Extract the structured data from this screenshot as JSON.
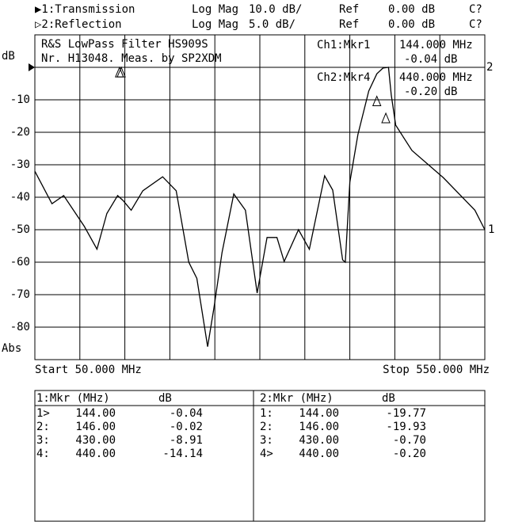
{
  "header": {
    "lines": [
      [
        "▶1:Transmission",
        "Log Mag",
        "10.0 dB/",
        "Ref",
        "0.00 dB",
        "C?"
      ],
      [
        "▷2:Reflection",
        "Log Mag",
        "5.0 dB/",
        "Ref",
        "0.00 dB",
        "C?"
      ]
    ]
  },
  "chart_data": {
    "type": "line",
    "title": "R&S LowPass Filter HS909S",
    "subtitle": "Nr. H13048. Meas. by SP2XDM",
    "y_label": "dB",
    "y_label_bottom": "Abs",
    "start_label": "Start 50.000 MHz",
    "stop_label": "Stop 550.000 MHz",
    "xlim": [
      50,
      550
    ],
    "ylim": [
      -90,
      10
    ],
    "yticks": [
      -10,
      -20,
      -30,
      -40,
      -50,
      -60,
      -70,
      -80
    ],
    "xgrid": [
      100,
      150,
      200,
      250,
      300,
      350,
      400,
      450,
      500
    ],
    "ref_level": 0,
    "grid": true,
    "series": [
      {
        "name": "1",
        "color": "#000000",
        "x": [
          50,
          69,
          82,
          105,
          119,
          130,
          142,
          148,
          157,
          170,
          192,
          207,
          221,
          230,
          242,
          249,
          258,
          271,
          284,
          297,
          308,
          319,
          327,
          343,
          355,
          372,
          381,
          392,
          395,
          400,
          409,
          421,
          430,
          437,
          443,
          446,
          451,
          469,
          504,
          539,
          550
        ],
        "values": [
          -32,
          -42,
          -39.5,
          -49,
          -56,
          -45,
          -39.5,
          -41,
          -44,
          -38,
          -33.7,
          -38,
          -60,
          -65,
          -86,
          -74,
          -57,
          -39,
          -44,
          -69.5,
          -52.4,
          -52.4,
          -59.8,
          -50,
          -56,
          -33.4,
          -37.8,
          -59.3,
          -60,
          -35.4,
          -20.7,
          -7.3,
          -2,
          -0.2,
          0,
          -8.5,
          -17.8,
          -25.6,
          -34,
          -44,
          -50
        ]
      }
    ],
    "trace2_label": "2",
    "readouts": [
      {
        "label": "Ch1:Mkr1",
        "freq": "144.000 MHz",
        "value": "-0.04 dB"
      },
      {
        "label": "Ch2:Mkr4",
        "freq": "440.000 MHz",
        "value": "-0.20 dB"
      }
    ]
  },
  "tables": [
    {
      "title": "1:Mkr (MHz)",
      "unit": "dB",
      "rows": [
        {
          "label": "1>",
          "freq": {
            "value": 144,
            "label": "144.00"
          },
          "db": {
            "value": -0.04,
            "label": "-0.04"
          }
        },
        {
          "label": "2:",
          "freq": {
            "value": 146,
            "label": "146.00"
          },
          "db": {
            "value": -0.02,
            "label": "-0.02"
          }
        },
        {
          "label": "3:",
          "freq": {
            "value": 430,
            "label": "430.00"
          },
          "db": {
            "value": -8.91,
            "label": "-8.91"
          }
        },
        {
          "label": "4:",
          "freq": {
            "value": 440,
            "label": "440.00"
          },
          "db": {
            "value": -14.14,
            "label": "-14.14"
          }
        }
      ]
    },
    {
      "title": "2:Mkr (MHz)",
      "unit": "dB",
      "rows": [
        {
          "label": "1:",
          "freq": {
            "value": 144,
            "label": "144.00"
          },
          "db": {
            "value": -19.77,
            "label": "-19.77"
          }
        },
        {
          "label": "2:",
          "freq": {
            "value": 146,
            "label": "146.00"
          },
          "db": {
            "value": -19.93,
            "label": "-19.93"
          }
        },
        {
          "label": "3:",
          "freq": {
            "value": 430,
            "label": "430.00"
          },
          "db": {
            "value": -0.7,
            "label": "-0.70"
          }
        },
        {
          "label": "4>",
          "freq": {
            "value": 440,
            "label": "440.00"
          },
          "db": {
            "value": -0.2,
            "label": "-0.20"
          }
        }
      ]
    }
  ]
}
